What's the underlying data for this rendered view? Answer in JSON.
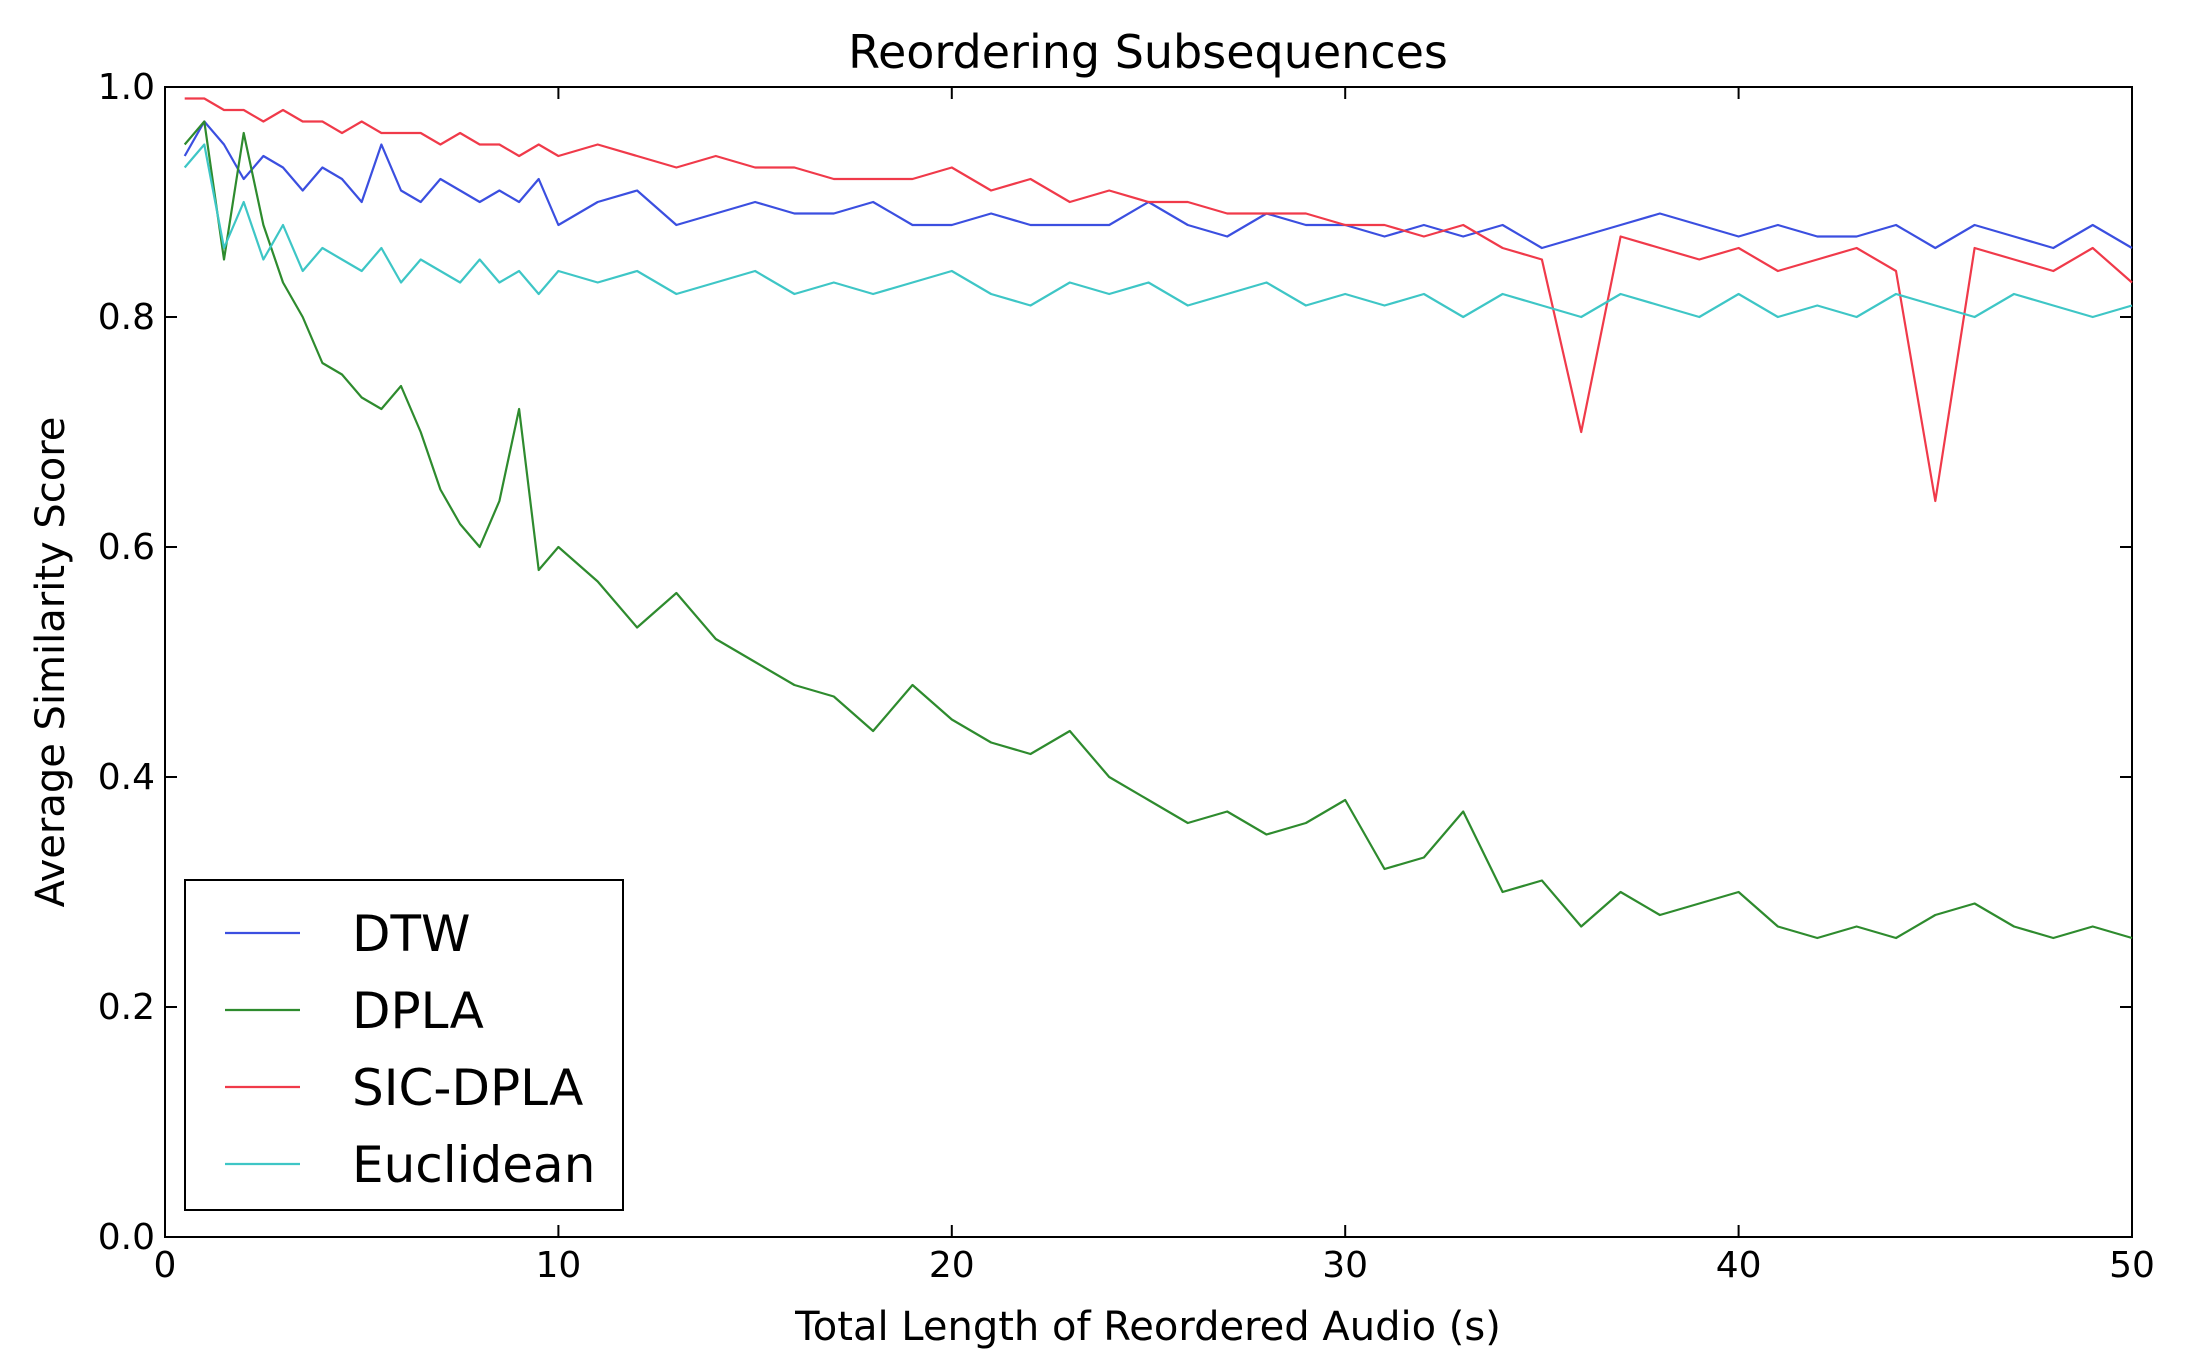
{
  "chart_data": {
    "type": "line",
    "title": "Reordering Subsequences",
    "xlabel": "Total Length of Reordered Audio (s)",
    "ylabel": "Average Similarity Score",
    "xlim": [
      0,
      50
    ],
    "ylim": [
      0.0,
      1.0
    ],
    "xticks": [
      0,
      10,
      20,
      30,
      40,
      50
    ],
    "yticks": [
      0.0,
      0.2,
      0.4,
      0.6,
      0.8,
      1.0
    ],
    "xtick_labels": [
      "0",
      "10",
      "20",
      "30",
      "40",
      "50"
    ],
    "ytick_labels": [
      "0.0",
      "0.2",
      "0.4",
      "0.6",
      "0.8",
      "1.0"
    ],
    "grid": false,
    "legend_position": "lower-left",
    "series": [
      {
        "name": "DTW",
        "color": "#3b4fe0",
        "x": [
          0.5,
          1,
          1.5,
          2,
          2.5,
          3,
          3.5,
          4,
          4.5,
          5,
          5.5,
          6,
          6.5,
          7,
          7.5,
          8,
          8.5,
          9,
          9.5,
          10,
          11,
          12,
          13,
          14,
          15,
          16,
          17,
          18,
          19,
          20,
          21,
          22,
          23,
          24,
          25,
          26,
          27,
          28,
          29,
          30,
          31,
          32,
          33,
          34,
          35,
          36,
          37,
          38,
          39,
          40,
          41,
          42,
          43,
          44,
          45,
          46,
          47,
          48,
          49,
          50
        ],
        "values": [
          0.94,
          0.97,
          0.95,
          0.92,
          0.94,
          0.93,
          0.91,
          0.93,
          0.92,
          0.9,
          0.95,
          0.91,
          0.9,
          0.92,
          0.91,
          0.9,
          0.91,
          0.9,
          0.92,
          0.88,
          0.9,
          0.91,
          0.88,
          0.89,
          0.9,
          0.89,
          0.89,
          0.9,
          0.88,
          0.88,
          0.89,
          0.88,
          0.88,
          0.88,
          0.9,
          0.88,
          0.87,
          0.89,
          0.88,
          0.88,
          0.87,
          0.88,
          0.87,
          0.88,
          0.86,
          0.87,
          0.88,
          0.89,
          0.88,
          0.87,
          0.88,
          0.87,
          0.87,
          0.88,
          0.86,
          0.88,
          0.87,
          0.86,
          0.88,
          0.86
        ]
      },
      {
        "name": "DPLA",
        "color": "#2e8b2e",
        "x": [
          0.5,
          1,
          1.5,
          2,
          2.5,
          3,
          3.5,
          4,
          4.5,
          5,
          5.5,
          6,
          6.5,
          7,
          7.5,
          8,
          8.5,
          9,
          9.5,
          10,
          11,
          12,
          13,
          14,
          15,
          16,
          17,
          18,
          19,
          20,
          21,
          22,
          23,
          24,
          25,
          26,
          27,
          28,
          29,
          30,
          31,
          32,
          33,
          34,
          35,
          36,
          37,
          38,
          39,
          40,
          41,
          42,
          43,
          44,
          45,
          46,
          47,
          48,
          49,
          50
        ],
        "values": [
          0.95,
          0.97,
          0.85,
          0.96,
          0.88,
          0.83,
          0.8,
          0.76,
          0.75,
          0.73,
          0.72,
          0.74,
          0.7,
          0.65,
          0.62,
          0.6,
          0.64,
          0.72,
          0.58,
          0.6,
          0.57,
          0.53,
          0.56,
          0.52,
          0.5,
          0.48,
          0.47,
          0.44,
          0.48,
          0.45,
          0.43,
          0.42,
          0.44,
          0.4,
          0.38,
          0.36,
          0.37,
          0.35,
          0.36,
          0.38,
          0.32,
          0.33,
          0.37,
          0.3,
          0.31,
          0.27,
          0.3,
          0.28,
          0.29,
          0.3,
          0.27,
          0.26,
          0.27,
          0.26,
          0.28,
          0.29,
          0.27,
          0.26,
          0.27,
          0.26
        ]
      },
      {
        "name": "SIC-DPLA",
        "color": "#f03a4a",
        "x": [
          0.5,
          1,
          1.5,
          2,
          2.5,
          3,
          3.5,
          4,
          4.5,
          5,
          5.5,
          6,
          6.5,
          7,
          7.5,
          8,
          8.5,
          9,
          9.5,
          10,
          11,
          12,
          13,
          14,
          15,
          16,
          17,
          18,
          19,
          20,
          21,
          22,
          23,
          24,
          25,
          26,
          27,
          28,
          29,
          30,
          31,
          32,
          33,
          34,
          35,
          36,
          37,
          38,
          39,
          40,
          41,
          42,
          43,
          44,
          45,
          46,
          47,
          48,
          49,
          50
        ],
        "values": [
          0.99,
          0.99,
          0.98,
          0.98,
          0.97,
          0.98,
          0.97,
          0.97,
          0.96,
          0.97,
          0.96,
          0.96,
          0.96,
          0.95,
          0.96,
          0.95,
          0.95,
          0.94,
          0.95,
          0.94,
          0.95,
          0.94,
          0.93,
          0.94,
          0.93,
          0.93,
          0.92,
          0.92,
          0.92,
          0.93,
          0.91,
          0.92,
          0.9,
          0.91,
          0.9,
          0.9,
          0.89,
          0.89,
          0.89,
          0.88,
          0.88,
          0.87,
          0.88,
          0.86,
          0.85,
          0.7,
          0.87,
          0.86,
          0.85,
          0.86,
          0.84,
          0.85,
          0.86,
          0.84,
          0.64,
          0.86,
          0.85,
          0.84,
          0.86,
          0.83
        ]
      },
      {
        "name": "Euclidean",
        "color": "#3ec6c6",
        "x": [
          0.5,
          1,
          1.5,
          2,
          2.5,
          3,
          3.5,
          4,
          4.5,
          5,
          5.5,
          6,
          6.5,
          7,
          7.5,
          8,
          8.5,
          9,
          9.5,
          10,
          11,
          12,
          13,
          14,
          15,
          16,
          17,
          18,
          19,
          20,
          21,
          22,
          23,
          24,
          25,
          26,
          27,
          28,
          29,
          30,
          31,
          32,
          33,
          34,
          35,
          36,
          37,
          38,
          39,
          40,
          41,
          42,
          43,
          44,
          45,
          46,
          47,
          48,
          49,
          50
        ],
        "values": [
          0.93,
          0.95,
          0.86,
          0.9,
          0.85,
          0.88,
          0.84,
          0.86,
          0.85,
          0.84,
          0.86,
          0.83,
          0.85,
          0.84,
          0.83,
          0.85,
          0.83,
          0.84,
          0.82,
          0.84,
          0.83,
          0.84,
          0.82,
          0.83,
          0.84,
          0.82,
          0.83,
          0.82,
          0.83,
          0.84,
          0.82,
          0.81,
          0.83,
          0.82,
          0.83,
          0.81,
          0.82,
          0.83,
          0.81,
          0.82,
          0.81,
          0.82,
          0.8,
          0.82,
          0.81,
          0.8,
          0.82,
          0.81,
          0.8,
          0.82,
          0.8,
          0.81,
          0.8,
          0.82,
          0.81,
          0.8,
          0.82,
          0.81,
          0.8,
          0.81
        ]
      }
    ]
  }
}
